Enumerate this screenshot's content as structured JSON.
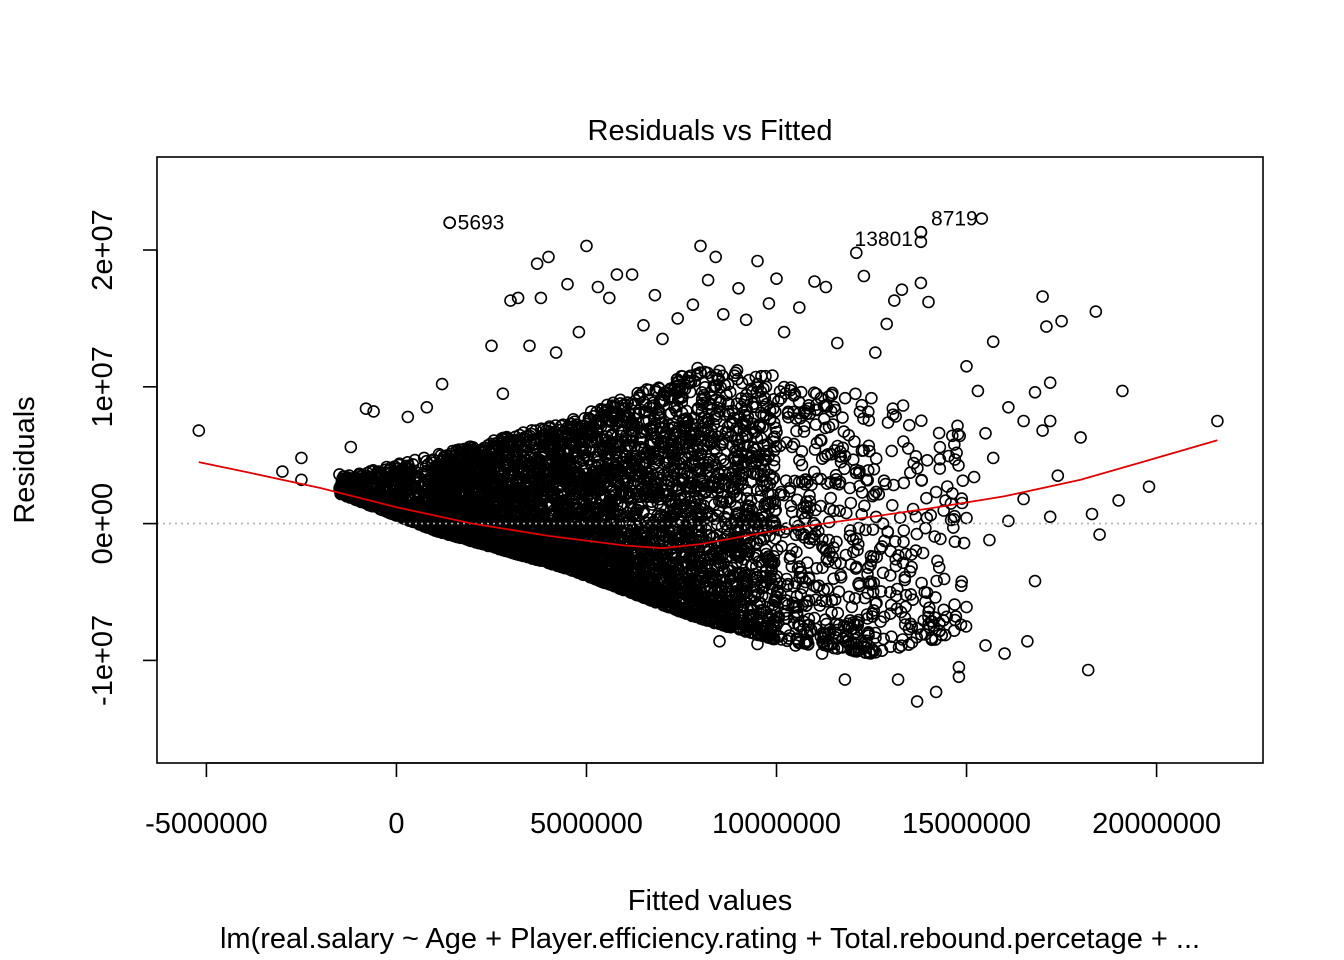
{
  "chart_data": {
    "type": "scatter",
    "title": "Residuals vs Fitted",
    "xlabel": "Fitted values",
    "ylabel": "Residuals",
    "subtitle": "lm(real.salary ~ Age + Player.efficiency.rating + Total.rebound.percetage + ...",
    "xlim": [
      -6300000,
      22800000
    ],
    "ylim": [
      -17500000,
      26800000
    ],
    "xticks": [
      {
        "value": -5000000,
        "label": "-5000000"
      },
      {
        "value": 0,
        "label": "0"
      },
      {
        "value": 5000000,
        "label": "5000000"
      },
      {
        "value": 10000000,
        "label": "10000000"
      },
      {
        "value": 15000000,
        "label": "15000000"
      },
      {
        "value": 20000000,
        "label": "20000000"
      }
    ],
    "yticks": [
      {
        "value": -10000000,
        "label": "-1e+07"
      },
      {
        "value": 0,
        "label": "0e+00"
      },
      {
        "value": 10000000,
        "label": "1e+07"
      },
      {
        "value": 20000000,
        "label": "2e+07"
      }
    ],
    "reference_line": {
      "y": 0,
      "style": "dotted",
      "color": "#b0b0b0"
    },
    "smoother": {
      "color": "#e00000",
      "points": [
        [
          -5200000,
          4500000
        ],
        [
          -4000000,
          3800000
        ],
        [
          -2000000,
          2600000
        ],
        [
          0,
          1200000
        ],
        [
          2000000,
          0
        ],
        [
          4000000,
          -900000
        ],
        [
          6000000,
          -1600000
        ],
        [
          7000000,
          -1800000
        ],
        [
          8000000,
          -1500000
        ],
        [
          10000000,
          -500000
        ],
        [
          12000000,
          300000
        ],
        [
          14000000,
          1100000
        ],
        [
          16000000,
          2000000
        ],
        [
          18000000,
          3200000
        ],
        [
          20000000,
          4800000
        ],
        [
          21600000,
          6100000
        ]
      ]
    },
    "labelled_points": [
      {
        "label": "5693",
        "x": 1400000,
        "y": 22000000
      },
      {
        "label": "13801",
        "x": 13800000,
        "y": 21300000
      },
      {
        "label": "8719",
        "x": 15400000,
        "y": 22300000
      }
    ],
    "points": [
      [
        -5200000,
        6800000
      ],
      [
        -3000000,
        3800000
      ],
      [
        -2500000,
        4800000
      ],
      [
        -2500000,
        3200000
      ],
      [
        -1500000,
        3600000
      ],
      [
        -800000,
        8400000
      ],
      [
        -600000,
        8200000
      ],
      [
        -1200000,
        5600000
      ],
      [
        300000,
        7800000
      ],
      [
        800000,
        8500000
      ],
      [
        1200000,
        10200000
      ],
      [
        1400000,
        22000000
      ],
      [
        2500000,
        13000000
      ],
      [
        2800000,
        9500000
      ],
      [
        3000000,
        16300000
      ],
      [
        3200000,
        16500000
      ],
      [
        3500000,
        13000000
      ],
      [
        3700000,
        19000000
      ],
      [
        3800000,
        16500000
      ],
      [
        4000000,
        19500000
      ],
      [
        4200000,
        12500000
      ],
      [
        4500000,
        17500000
      ],
      [
        4800000,
        14000000
      ],
      [
        5000000,
        20300000
      ],
      [
        5300000,
        17300000
      ],
      [
        5600000,
        16500000
      ],
      [
        5800000,
        18200000
      ],
      [
        6200000,
        18200000
      ],
      [
        6500000,
        14500000
      ],
      [
        6800000,
        16700000
      ],
      [
        7000000,
        13500000
      ],
      [
        7400000,
        15000000
      ],
      [
        7800000,
        16000000
      ],
      [
        8000000,
        20300000
      ],
      [
        8200000,
        17800000
      ],
      [
        8400000,
        19500000
      ],
      [
        8600000,
        15300000
      ],
      [
        9000000,
        17200000
      ],
      [
        9200000,
        14900000
      ],
      [
        9500000,
        19200000
      ],
      [
        9800000,
        16100000
      ],
      [
        10000000,
        17900000
      ],
      [
        10200000,
        14000000
      ],
      [
        10600000,
        15800000
      ],
      [
        11000000,
        17700000
      ],
      [
        11300000,
        17300000
      ],
      [
        11600000,
        13200000
      ],
      [
        12100000,
        19800000
      ],
      [
        12300000,
        18100000
      ],
      [
        12600000,
        12500000
      ],
      [
        12900000,
        14600000
      ],
      [
        13100000,
        16300000
      ],
      [
        13300000,
        17100000
      ],
      [
        13800000,
        21300000
      ],
      [
        13800000,
        20600000
      ],
      [
        13800000,
        17600000
      ],
      [
        14000000,
        16200000
      ],
      [
        15000000,
        11500000
      ],
      [
        15300000,
        9700000
      ],
      [
        15700000,
        13300000
      ],
      [
        16100000,
        8500000
      ],
      [
        16800000,
        9600000
      ],
      [
        17000000,
        16600000
      ],
      [
        17100000,
        14400000
      ],
      [
        17200000,
        10300000
      ],
      [
        17500000,
        14800000
      ],
      [
        18400000,
        15500000
      ],
      [
        19100000,
        9700000
      ],
      [
        18000000,
        6300000
      ],
      [
        19800000,
        2700000
      ],
      [
        21600000,
        7500000
      ],
      [
        19000000,
        1700000
      ],
      [
        18300000,
        700000
      ],
      [
        18500000,
        -800000
      ],
      [
        17200000,
        500000
      ],
      [
        16500000,
        1800000
      ],
      [
        15200000,
        3400000
      ],
      [
        14300000,
        4700000
      ],
      [
        13900000,
        -5000000
      ],
      [
        14800000,
        -10500000
      ],
      [
        14800000,
        -11200000
      ],
      [
        15500000,
        -8900000
      ],
      [
        16000000,
        -9500000
      ],
      [
        16600000,
        -8600000
      ],
      [
        16800000,
        -4200000
      ],
      [
        18200000,
        -10700000
      ],
      [
        13700000,
        -13000000
      ],
      [
        14200000,
        -12300000
      ],
      [
        13200000,
        -11400000
      ],
      [
        11800000,
        -11400000
      ],
      [
        14400000,
        -6300000
      ],
      [
        15000000,
        -6100000
      ],
      [
        12600000,
        -8000000
      ],
      [
        13000000,
        -9000000
      ],
      [
        11200000,
        -9500000
      ],
      [
        10500000,
        -8900000
      ],
      [
        9500000,
        -8800000
      ],
      [
        8500000,
        -8600000
      ],
      [
        15600000,
        -1200000
      ],
      [
        16100000,
        200000
      ],
      [
        17400000,
        3500000
      ],
      [
        15500000,
        6600000
      ],
      [
        15700000,
        4800000
      ],
      [
        16500000,
        7500000
      ],
      [
        17200000,
        7500000
      ],
      [
        17000000,
        6800000
      ],
      [
        14200000,
        2300000
      ],
      [
        15000000,
        400000
      ]
    ],
    "point_cloud": [
      {
        "x": [
          -1500000,
          1000000
        ],
        "y_low": [
          2200000,
          -500000
        ],
        "y_high": [
          3400000,
          5000000
        ],
        "n": 550
      },
      {
        "x": [
          1000000,
          4500000
        ],
        "y_low": [
          -500000,
          -3300000
        ],
        "y_high": [
          5000000,
          7500000
        ],
        "n": 1900
      },
      {
        "x": [
          4500000,
          8000000
        ],
        "y_low": [
          -3300000,
          -7000000
        ],
        "y_high": [
          7500000,
          11500000
        ],
        "n": 1900
      },
      {
        "x": [
          8000000,
          10000000
        ],
        "y_low": [
          -7000000,
          -8500000
        ],
        "y_high": [
          11500000,
          11000000
        ],
        "n": 800
      },
      {
        "x": [
          10000000,
          12500000
        ],
        "y_low": [
          -8500000,
          -9500000
        ],
        "y_high": [
          11000000,
          9500000
        ],
        "n": 380
      },
      {
        "x": [
          12500000,
          15000000
        ],
        "y_low": [
          -9500000,
          -8000000
        ],
        "y_high": [
          9500000,
          8000000
        ],
        "n": 170
      }
    ]
  }
}
